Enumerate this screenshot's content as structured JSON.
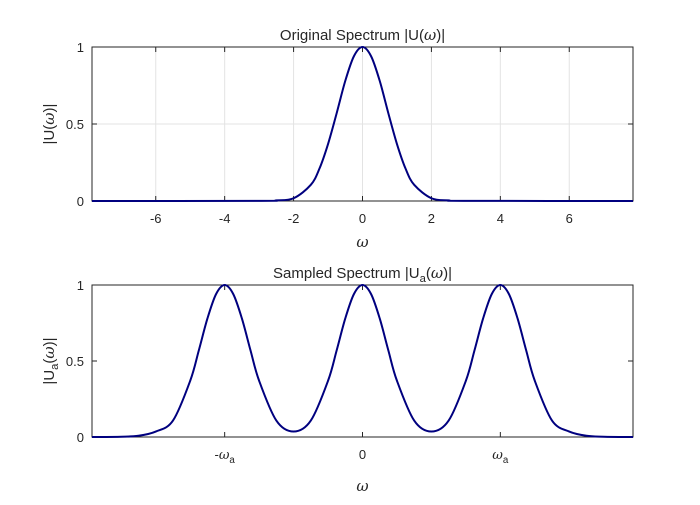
{
  "chart_data": [
    {
      "type": "line",
      "title": "Original Spectrum |U(ω)|",
      "xlabel": "ω",
      "ylabel": "|U(ω)|",
      "xlim": [
        -7.85,
        7.85
      ],
      "ylim": [
        0,
        1
      ],
      "grid": true,
      "x_ticks": [
        -6,
        -4,
        -2,
        0,
        2,
        4,
        6
      ],
      "x_tick_labels": [
        "-6",
        "-4",
        "-2",
        "0",
        "2",
        "4",
        "6"
      ],
      "y_ticks": [
        0,
        0.5,
        1
      ],
      "y_tick_labels": [
        "0",
        "0.5",
        "1"
      ],
      "series": [
        {
          "color": "#00007f",
          "x": [
            -7.85,
            -3,
            -2.5,
            -2,
            -1.5,
            -1.25,
            -1,
            -0.75,
            -0.5,
            -0.25,
            0,
            0.25,
            0.5,
            0.75,
            1,
            1.25,
            1.5,
            2,
            2.5,
            3,
            7.85
          ],
          "y": [
            0,
            0.001,
            0.004,
            0.018,
            0.105,
            0.21,
            0.37,
            0.57,
            0.78,
            0.94,
            1,
            0.94,
            0.78,
            0.57,
            0.37,
            0.21,
            0.105,
            0.018,
            0.004,
            0.001,
            0
          ]
        }
      ]
    },
    {
      "type": "line",
      "title": "Sampled Spectrum |Ua(ω)|",
      "xlabel": "ω",
      "ylabel": "|Ua(ω)|",
      "xlim": [
        -7.85,
        7.85
      ],
      "ylim": [
        0,
        1
      ],
      "grid": false,
      "x_ticks": [
        -4,
        0,
        4
      ],
      "x_tick_labels": [
        "-ωa",
        "0",
        "ωa"
      ],
      "y_ticks": [
        0,
        0.5,
        1
      ],
      "y_tick_labels": [
        "0",
        "0.5",
        "1"
      ],
      "series": [
        {
          "color": "#00007f",
          "x": [
            -7.85,
            -7,
            -6.5,
            -6,
            -5.5,
            -5,
            -4.75,
            -4.5,
            -4.25,
            -4,
            -3.75,
            -3.5,
            -3.25,
            -3,
            -2.5,
            -2,
            -1.5,
            -1,
            -0.75,
            -0.5,
            -0.25,
            0,
            0.25,
            0.5,
            0.75,
            1,
            1.5,
            2,
            2.5,
            3,
            3.25,
            3.5,
            3.75,
            4,
            4.25,
            4.5,
            4.75,
            5,
            5.5,
            6,
            6.5,
            7,
            7.85
          ],
          "y": [
            0,
            0.002,
            0.008,
            0.036,
            0.108,
            0.37,
            0.57,
            0.78,
            0.94,
            1,
            0.94,
            0.78,
            0.57,
            0.37,
            0.108,
            0.036,
            0.108,
            0.37,
            0.57,
            0.78,
            0.94,
            1,
            0.94,
            0.78,
            0.57,
            0.37,
            0.108,
            0.036,
            0.108,
            0.37,
            0.57,
            0.78,
            0.94,
            1,
            0.94,
            0.78,
            0.57,
            0.37,
            0.108,
            0.036,
            0.008,
            0.002,
            0
          ]
        }
      ]
    }
  ]
}
